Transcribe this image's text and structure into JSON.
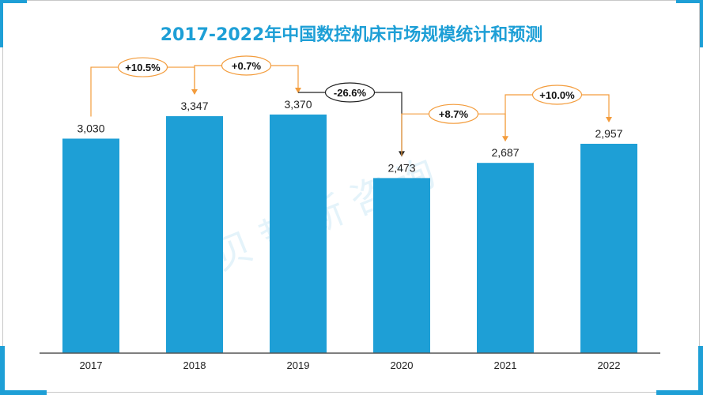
{
  "title": "2017-2022年中国数控机床市场规模统计和预测",
  "watermark": "贝哲斯咨询",
  "colors": {
    "bar": "#1e9fd6",
    "accent": "#f39c3c",
    "negative": "#222222",
    "title": "#1e9fd6"
  },
  "chart_data": {
    "type": "bar",
    "title": "2017-2022年中国数控机床市场规模统计和预测",
    "categories": [
      "2017",
      "2018",
      "2019",
      "2020",
      "2021",
      "2022"
    ],
    "values": [
      3030,
      3347,
      3370,
      2473,
      2687,
      2957
    ],
    "data_labels": [
      "3,030",
      "3,347",
      "3,370",
      "2,473",
      "2,687",
      "2,957"
    ],
    "growth_labels": [
      "+10.5%",
      "+0.7%",
      "-26.6%",
      "+8.7%",
      "+10.0%"
    ],
    "ylim": [
      0,
      3370
    ],
    "grid": false,
    "legend": "none"
  }
}
